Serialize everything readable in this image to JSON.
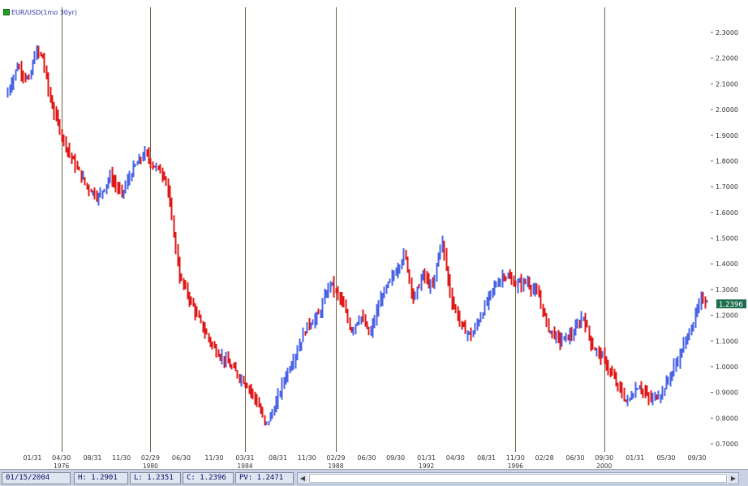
{
  "legend": {
    "label": "EUR/USD(1mo 30yr)",
    "color": "#1fa01f"
  },
  "price_tag": {
    "value": "1.2396",
    "color": "#1e6e4e"
  },
  "status": {
    "date": "01/15/2004",
    "high": "H: 1.2901",
    "low": "L: 1.2351",
    "close": "C: 1.2396",
    "pv": "PV: 1.2471"
  },
  "colors": {
    "up": "#4a64e8",
    "down": "#e01818",
    "divider": "#6e6448"
  },
  "chart_data": {
    "type": "bar",
    "subtype": "ohlc-price-bars",
    "title": "EUR/USD(1mo 30yr)",
    "xlabel": "",
    "ylabel": "",
    "ylim": [
      0.7,
      2.35
    ],
    "y_ticks": [
      "2.3000",
      "2.2000",
      "2.1000",
      "2.0000",
      "1.9000",
      "1.8000",
      "1.7000",
      "1.6000",
      "1.5000",
      "1.4000",
      "1.3000",
      "1.2000",
      "1.1000",
      "1.0000",
      "0.9000",
      "0.8000",
      "0.7000"
    ],
    "x_ticks": [
      {
        "label": "01/31",
        "sub": "",
        "t": 1975.08
      },
      {
        "label": "04/30",
        "sub": "1976",
        "t": 1976.33
      },
      {
        "label": "08/31",
        "sub": "",
        "t": 1977.67
      },
      {
        "label": "11/30",
        "sub": "",
        "t": 1978.92
      },
      {
        "label": "02/29",
        "sub": "1980",
        "t": 1980.17
      },
      {
        "label": "06/30",
        "sub": "",
        "t": 1981.5
      },
      {
        "label": "11/30",
        "sub": "",
        "t": 1982.92
      },
      {
        "label": "03/31",
        "sub": "1984",
        "t": 1984.25
      },
      {
        "label": "08/31",
        "sub": "",
        "t": 1985.67
      },
      {
        "label": "11/30",
        "sub": "",
        "t": 1986.92
      },
      {
        "label": "02/29",
        "sub": "1988",
        "t": 1988.17
      },
      {
        "label": "06/30",
        "sub": "",
        "t": 1989.5
      },
      {
        "label": "09/30",
        "sub": "",
        "t": 1990.75
      },
      {
        "label": "01/31",
        "sub": "1992",
        "t": 1992.08
      },
      {
        "label": "04/30",
        "sub": "",
        "t": 1993.33
      },
      {
        "label": "08/31",
        "sub": "",
        "t": 1994.67
      },
      {
        "label": "11/30",
        "sub": "1996",
        "t": 1995.92
      },
      {
        "label": "02/28",
        "sub": "",
        "t": 1997.17
      },
      {
        "label": "06/30",
        "sub": "",
        "t": 1998.5
      },
      {
        "label": "09/30",
        "sub": "2000",
        "t": 1999.75
      },
      {
        "label": "01/31",
        "sub": "",
        "t": 2001.08
      },
      {
        "label": "05/30",
        "sub": "",
        "t": 2002.42
      },
      {
        "label": "09/30",
        "sub": "",
        "t": 2003.75
      }
    ],
    "dividers": [
      1976.33,
      1980.17,
      1984.25,
      1988.17,
      1995.92,
      1999.75
    ],
    "x_range": [
      1974.0,
      2004.25
    ],
    "keypoints": [
      [
        1974.0,
        2.05
      ],
      [
        1974.5,
        2.17
      ],
      [
        1975.0,
        2.11
      ],
      [
        1975.3,
        2.23
      ],
      [
        1975.6,
        2.2
      ],
      [
        1975.9,
        2.04
      ],
      [
        1976.5,
        1.88
      ],
      [
        1976.9,
        1.8
      ],
      [
        1977.5,
        1.7
      ],
      [
        1978.0,
        1.66
      ],
      [
        1978.5,
        1.74
      ],
      [
        1979.0,
        1.67
      ],
      [
        1979.5,
        1.77
      ],
      [
        1980.0,
        1.83
      ],
      [
        1980.3,
        1.79
      ],
      [
        1980.9,
        1.74
      ],
      [
        1981.2,
        1.55
      ],
      [
        1981.5,
        1.35
      ],
      [
        1982.0,
        1.25
      ],
      [
        1982.5,
        1.15
      ],
      [
        1983.0,
        1.07
      ],
      [
        1983.5,
        1.02
      ],
      [
        1984.0,
        0.97
      ],
      [
        1984.5,
        0.92
      ],
      [
        1984.9,
        0.85
      ],
      [
        1985.2,
        0.77
      ],
      [
        1985.6,
        0.84
      ],
      [
        1986.0,
        0.95
      ],
      [
        1986.5,
        1.05
      ],
      [
        1987.0,
        1.16
      ],
      [
        1987.5,
        1.2
      ],
      [
        1988.0,
        1.33
      ],
      [
        1988.5,
        1.25
      ],
      [
        1988.9,
        1.14
      ],
      [
        1989.3,
        1.2
      ],
      [
        1989.7,
        1.12
      ],
      [
        1990.2,
        1.27
      ],
      [
        1990.7,
        1.35
      ],
      [
        1991.2,
        1.44
      ],
      [
        1991.6,
        1.26
      ],
      [
        1992.0,
        1.36
      ],
      [
        1992.4,
        1.3
      ],
      [
        1992.8,
        1.5
      ],
      [
        1993.2,
        1.27
      ],
      [
        1993.7,
        1.15
      ],
      [
        1994.1,
        1.12
      ],
      [
        1994.6,
        1.22
      ],
      [
        1995.0,
        1.3
      ],
      [
        1995.5,
        1.36
      ],
      [
        1996.0,
        1.32
      ],
      [
        1996.5,
        1.33
      ],
      [
        1997.0,
        1.27
      ],
      [
        1997.4,
        1.15
      ],
      [
        1997.9,
        1.1
      ],
      [
        1998.5,
        1.13
      ],
      [
        1998.9,
        1.2
      ],
      [
        1999.3,
        1.08
      ],
      [
        1999.8,
        1.03
      ],
      [
        2000.3,
        0.94
      ],
      [
        2000.8,
        0.86
      ],
      [
        2001.3,
        0.93
      ],
      [
        2001.8,
        0.87
      ],
      [
        2002.3,
        0.9
      ],
      [
        2002.8,
        0.99
      ],
      [
        2003.2,
        1.07
      ],
      [
        2003.6,
        1.16
      ],
      [
        2004.0,
        1.26
      ]
    ]
  }
}
